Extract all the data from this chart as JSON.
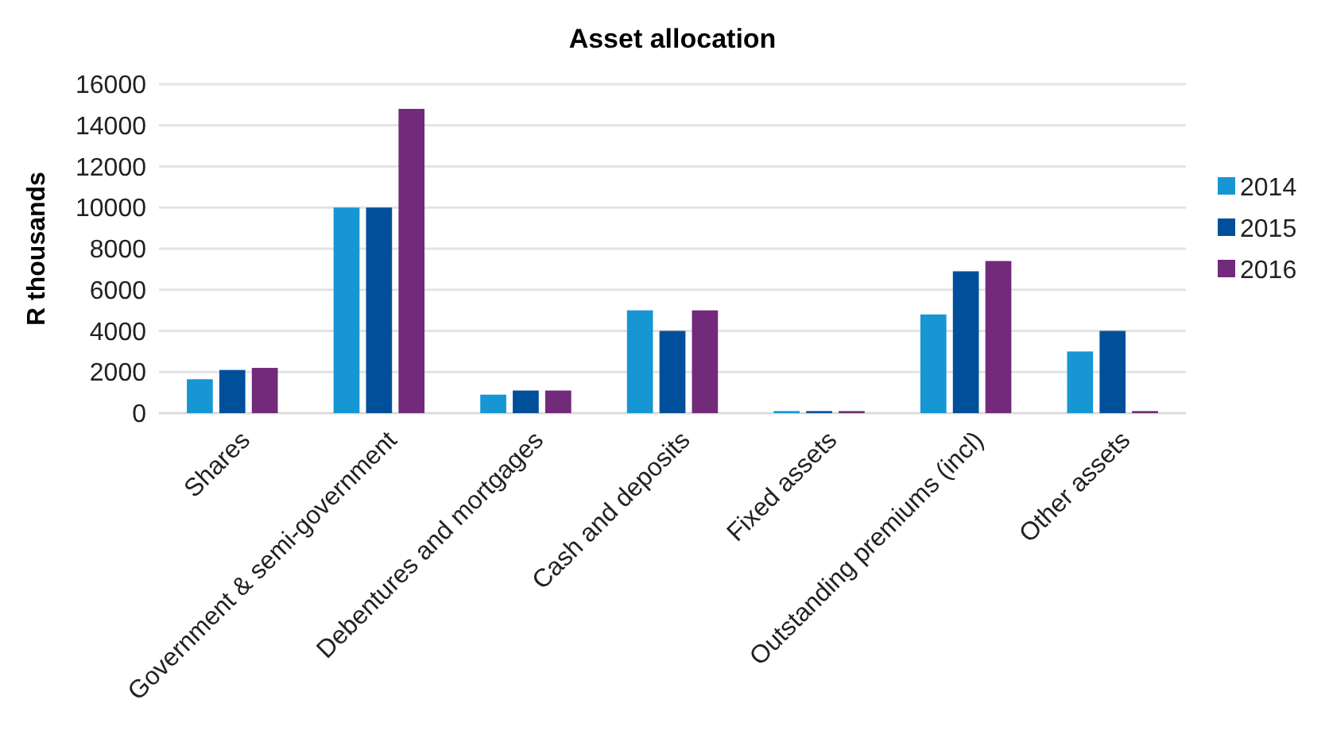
{
  "chart_data": {
    "type": "bar",
    "title": "Asset allocation",
    "ylabel": "R thousands",
    "categories": [
      "Shares",
      "Government & semi-government",
      "Debentures and mortgages",
      "Cash and deposits",
      "Fixed assets",
      "Outstanding premiums (incl)",
      "Other assets"
    ],
    "series": [
      {
        "name": "2014",
        "color": "#1796d4",
        "values": [
          1650,
          10000,
          900,
          5000,
          100,
          4800,
          3000
        ]
      },
      {
        "name": "2015",
        "color": "#004f9a",
        "values": [
          2100,
          10000,
          1100,
          4000,
          100,
          6900,
          4000
        ]
      },
      {
        "name": "2016",
        "color": "#722a7a",
        "values": [
          2200,
          14800,
          1100,
          5000,
          100,
          7400,
          100
        ]
      }
    ],
    "ylim": [
      0,
      16000
    ],
    "yticks": [
      0,
      2000,
      4000,
      6000,
      8000,
      10000,
      12000,
      14000,
      16000
    ],
    "grid": "y",
    "legend": "right"
  }
}
